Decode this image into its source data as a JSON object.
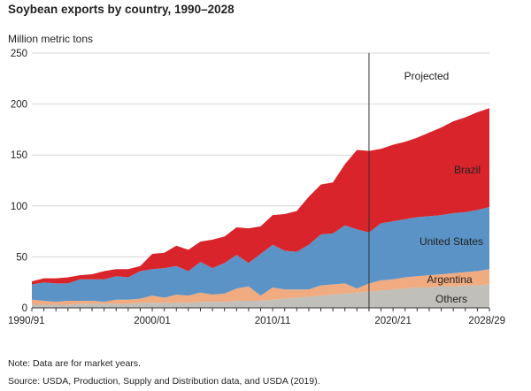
{
  "title": "Soybean exports by country, 1990–2028",
  "unit_label": "Million metric tons",
  "note": "Note: Data are for market years.",
  "source": "Source: USDA, Production, Supply and Distribution data, and USDA (2019).",
  "projection_label": "Projected",
  "colors": {
    "Others": "#c0bfba",
    "Argentina": "#f0ab80",
    "United States": "#5b93c6",
    "Brazil": "#d8242a"
  },
  "chart_data": {
    "type": "area",
    "stacked": true,
    "title": "Soybean exports by country, 1990–2028",
    "ylabel": "Million metric tons",
    "ylim": [
      0,
      250
    ],
    "yticks": [
      0,
      50,
      100,
      150,
      200,
      250
    ],
    "x_tick_labels": [
      {
        "x": 1990,
        "label": "1990/91"
      },
      {
        "x": 2000,
        "label": "2000/01"
      },
      {
        "x": 2010,
        "label": "2010/11"
      },
      {
        "x": 2020,
        "label": "2020/21"
      },
      {
        "x": 2028,
        "label": "2028/29"
      }
    ],
    "projection_start": 2018,
    "x": [
      1990,
      1991,
      1992,
      1993,
      1994,
      1995,
      1996,
      1997,
      1998,
      1999,
      2000,
      2001,
      2002,
      2003,
      2004,
      2005,
      2006,
      2007,
      2008,
      2009,
      2010,
      2011,
      2012,
      2013,
      2014,
      2015,
      2016,
      2017,
      2018,
      2019,
      2020,
      2021,
      2022,
      2023,
      2024,
      2025,
      2026,
      2027,
      2028
    ],
    "series": [
      {
        "name": "Others",
        "values": [
          3,
          3,
          3,
          3,
          4,
          4,
          4,
          4,
          4,
          5,
          5,
          5,
          5,
          5,
          6,
          6,
          6,
          7,
          7,
          7,
          8,
          9,
          10,
          11,
          12,
          13,
          14,
          15,
          16,
          17,
          18,
          19,
          20,
          20,
          21,
          21,
          22,
          22,
          23
        ]
      },
      {
        "name": "Argentina",
        "values": [
          5,
          4,
          3,
          4,
          3,
          3,
          2,
          4,
          4,
          4,
          7,
          5,
          8,
          7,
          9,
          7,
          8,
          12,
          14,
          5,
          12,
          9,
          8,
          7,
          10,
          10,
          10,
          4,
          8,
          10,
          10,
          11,
          11,
          12,
          12,
          13,
          13,
          14,
          15
        ]
      },
      {
        "name": "United States",
        "values": [
          15,
          18,
          18,
          17,
          21,
          21,
          22,
          23,
          22,
          27,
          26,
          29,
          28,
          24,
          30,
          26,
          30,
          33,
          23,
          41,
          42,
          38,
          37,
          44,
          50,
          50,
          57,
          58,
          50,
          56,
          57,
          57,
          58,
          58,
          58,
          59,
          59,
          60,
          61
        ]
      },
      {
        "name": "Brazil",
        "values": [
          3,
          4,
          5,
          6,
          4,
          5,
          8,
          7,
          8,
          5,
          15,
          15,
          20,
          21,
          20,
          28,
          26,
          27,
          34,
          27,
          29,
          36,
          40,
          47,
          49,
          50,
          60,
          78,
          80,
          73,
          75,
          76,
          78,
          82,
          86,
          90,
          93,
          96,
          97
        ]
      }
    ]
  }
}
